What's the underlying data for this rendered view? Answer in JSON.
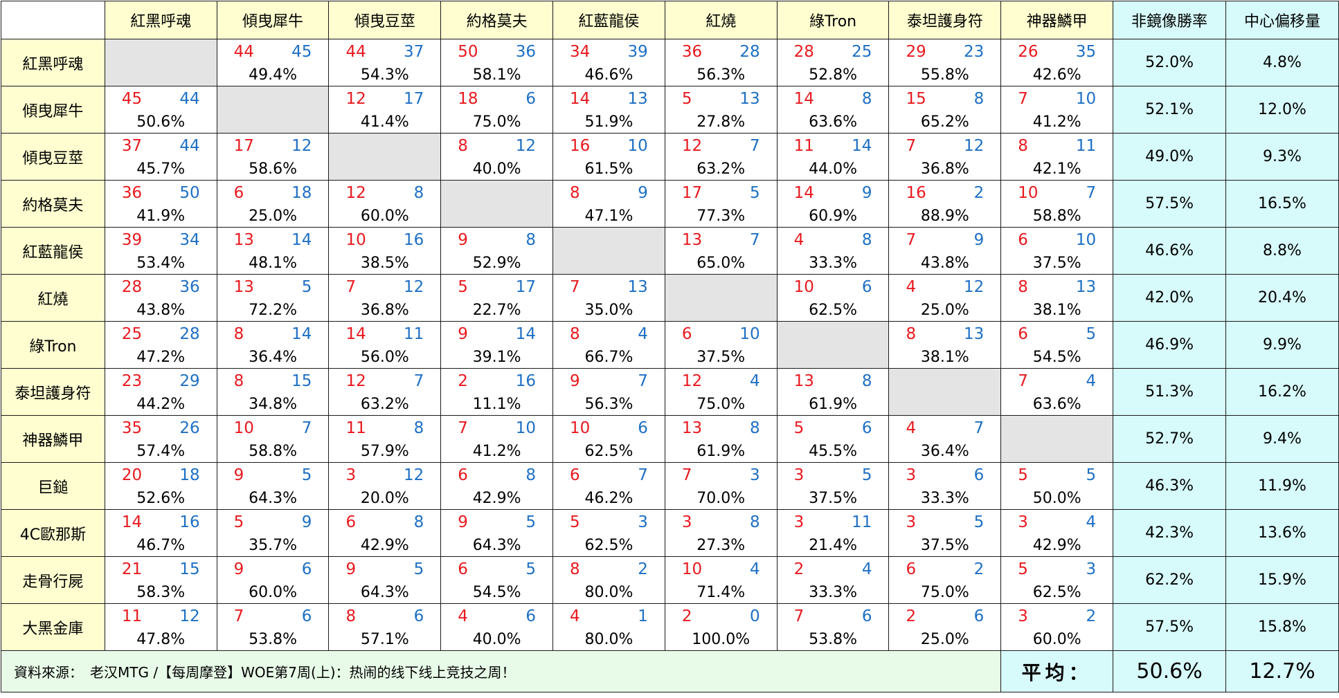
{
  "columns": [
    "紅黑呼魂",
    "傾曳犀牛",
    "傾曳豆莖",
    "約格莫夫",
    "紅藍龍侯",
    "紅燒",
    "綠Tron",
    "泰坦護身符",
    "神器鱗甲"
  ],
  "stat_headers": [
    "非鏡像勝率",
    "中心偏移量"
  ],
  "rows": [
    {
      "name": "紅黑呼魂",
      "cells": [
        null,
        [
          "44",
          "45",
          "49.4%"
        ],
        [
          "44",
          "37",
          "54.3%"
        ],
        [
          "50",
          "36",
          "58.1%"
        ],
        [
          "34",
          "39",
          "46.6%"
        ],
        [
          "36",
          "28",
          "56.3%"
        ],
        [
          "28",
          "25",
          "52.8%"
        ],
        [
          "29",
          "23",
          "55.8%"
        ],
        [
          "26",
          "35",
          "42.6%"
        ]
      ],
      "winrate": "52.0%",
      "offset": "4.8%"
    },
    {
      "name": "傾曳犀牛",
      "cells": [
        [
          "45",
          "44",
          "50.6%"
        ],
        null,
        [
          "12",
          "17",
          "41.4%"
        ],
        [
          "18",
          "6",
          "75.0%"
        ],
        [
          "14",
          "13",
          "51.9%"
        ],
        [
          "5",
          "13",
          "27.8%"
        ],
        [
          "14",
          "8",
          "63.6%"
        ],
        [
          "15",
          "8",
          "65.2%"
        ],
        [
          "7",
          "10",
          "41.2%"
        ]
      ],
      "winrate": "52.1%",
      "offset": "12.0%"
    },
    {
      "name": "傾曳豆莖",
      "cells": [
        [
          "37",
          "44",
          "45.7%"
        ],
        [
          "17",
          "12",
          "58.6%"
        ],
        null,
        [
          "8",
          "12",
          "40.0%"
        ],
        [
          "16",
          "10",
          "61.5%"
        ],
        [
          "12",
          "7",
          "63.2%"
        ],
        [
          "11",
          "14",
          "44.0%"
        ],
        [
          "7",
          "12",
          "36.8%"
        ],
        [
          "8",
          "11",
          "42.1%"
        ]
      ],
      "winrate": "49.0%",
      "offset": "9.3%"
    },
    {
      "name": "約格莫夫",
      "cells": [
        [
          "36",
          "50",
          "41.9%"
        ],
        [
          "6",
          "18",
          "25.0%"
        ],
        [
          "12",
          "8",
          "60.0%"
        ],
        null,
        [
          "8",
          "9",
          "47.1%"
        ],
        [
          "17",
          "5",
          "77.3%"
        ],
        [
          "14",
          "9",
          "60.9%"
        ],
        [
          "16",
          "2",
          "88.9%"
        ],
        [
          "10",
          "7",
          "58.8%"
        ]
      ],
      "winrate": "57.5%",
      "offset": "16.5%"
    },
    {
      "name": "紅藍龍侯",
      "cells": [
        [
          "39",
          "34",
          "53.4%"
        ],
        [
          "13",
          "14",
          "48.1%"
        ],
        [
          "10",
          "16",
          "38.5%"
        ],
        [
          "9",
          "8",
          "52.9%"
        ],
        null,
        [
          "13",
          "7",
          "65.0%"
        ],
        [
          "4",
          "8",
          "33.3%"
        ],
        [
          "7",
          "9",
          "43.8%"
        ],
        [
          "6",
          "10",
          "37.5%"
        ]
      ],
      "winrate": "46.6%",
      "offset": "8.8%"
    },
    {
      "name": "紅燒",
      "cells": [
        [
          "28",
          "36",
          "43.8%"
        ],
        [
          "13",
          "5",
          "72.2%"
        ],
        [
          "7",
          "12",
          "36.8%"
        ],
        [
          "5",
          "17",
          "22.7%"
        ],
        [
          "7",
          "13",
          "35.0%"
        ],
        null,
        [
          "10",
          "6",
          "62.5%"
        ],
        [
          "4",
          "12",
          "25.0%"
        ],
        [
          "8",
          "13",
          "38.1%"
        ]
      ],
      "winrate": "42.0%",
      "offset": "20.4%"
    },
    {
      "name": "綠Tron",
      "cells": [
        [
          "25",
          "28",
          "47.2%"
        ],
        [
          "8",
          "14",
          "36.4%"
        ],
        [
          "14",
          "11",
          "56.0%"
        ],
        [
          "9",
          "14",
          "39.1%"
        ],
        [
          "8",
          "4",
          "66.7%"
        ],
        [
          "6",
          "10",
          "37.5%"
        ],
        null,
        [
          "8",
          "13",
          "38.1%"
        ],
        [
          "6",
          "5",
          "54.5%"
        ]
      ],
      "winrate": "46.9%",
      "offset": "9.9%"
    },
    {
      "name": "泰坦護身符",
      "cells": [
        [
          "23",
          "29",
          "44.2%"
        ],
        [
          "8",
          "15",
          "34.8%"
        ],
        [
          "12",
          "7",
          "63.2%"
        ],
        [
          "2",
          "16",
          "11.1%"
        ],
        [
          "9",
          "7",
          "56.3%"
        ],
        [
          "12",
          "4",
          "75.0%"
        ],
        [
          "13",
          "8",
          "61.9%"
        ],
        null,
        [
          "7",
          "4",
          "63.6%"
        ]
      ],
      "winrate": "51.3%",
      "offset": "16.2%"
    },
    {
      "name": "神器鱗甲",
      "cells": [
        [
          "35",
          "26",
          "57.4%"
        ],
        [
          "10",
          "7",
          "58.8%"
        ],
        [
          "11",
          "8",
          "57.9%"
        ],
        [
          "7",
          "10",
          "41.2%"
        ],
        [
          "10",
          "6",
          "62.5%"
        ],
        [
          "13",
          "8",
          "61.9%"
        ],
        [
          "5",
          "6",
          "45.5%"
        ],
        [
          "4",
          "7",
          "36.4%"
        ],
        null
      ],
      "winrate": "52.7%",
      "offset": "9.4%"
    },
    {
      "name": "巨鎚",
      "cells": [
        [
          "20",
          "18",
          "52.6%"
        ],
        [
          "9",
          "5",
          "64.3%"
        ],
        [
          "3",
          "12",
          "20.0%"
        ],
        [
          "6",
          "8",
          "42.9%"
        ],
        [
          "6",
          "7",
          "46.2%"
        ],
        [
          "7",
          "3",
          "70.0%"
        ],
        [
          "3",
          "5",
          "37.5%"
        ],
        [
          "3",
          "6",
          "33.3%"
        ],
        [
          "5",
          "5",
          "50.0%"
        ]
      ],
      "winrate": "46.3%",
      "offset": "11.9%"
    },
    {
      "name": "4C歐那斯",
      "cells": [
        [
          "14",
          "16",
          "46.7%"
        ],
        [
          "5",
          "9",
          "35.7%"
        ],
        [
          "6",
          "8",
          "42.9%"
        ],
        [
          "9",
          "5",
          "64.3%"
        ],
        [
          "5",
          "3",
          "62.5%"
        ],
        [
          "3",
          "8",
          "27.3%"
        ],
        [
          "3",
          "11",
          "21.4%"
        ],
        [
          "3",
          "5",
          "37.5%"
        ],
        [
          "3",
          "4",
          "42.9%"
        ]
      ],
      "winrate": "42.3%",
      "offset": "13.6%"
    },
    {
      "name": "走骨行屍",
      "cells": [
        [
          "21",
          "15",
          "58.3%"
        ],
        [
          "9",
          "6",
          "60.0%"
        ],
        [
          "9",
          "5",
          "64.3%"
        ],
        [
          "6",
          "5",
          "54.5%"
        ],
        [
          "8",
          "2",
          "80.0%"
        ],
        [
          "10",
          "4",
          "71.4%"
        ],
        [
          "2",
          "4",
          "33.3%"
        ],
        [
          "6",
          "2",
          "75.0%"
        ],
        [
          "5",
          "3",
          "62.5%"
        ]
      ],
      "winrate": "62.2%",
      "offset": "15.9%"
    },
    {
      "name": "大黑金庫",
      "cells": [
        [
          "11",
          "12",
          "47.8%"
        ],
        [
          "7",
          "6",
          "53.8%"
        ],
        [
          "8",
          "6",
          "57.1%"
        ],
        [
          "4",
          "6",
          "40.0%"
        ],
        [
          "4",
          "1",
          "80.0%"
        ],
        [
          "2",
          "0",
          "100.0%"
        ],
        [
          "7",
          "6",
          "53.8%"
        ],
        [
          "2",
          "6",
          "25.0%"
        ],
        [
          "3",
          "2",
          "60.0%"
        ]
      ],
      "winrate": "57.5%",
      "offset": "15.8%"
    }
  ],
  "footer": {
    "source": "資料來源：　老汉MTG /【每周摩登】WOE第7周(上)：热闹的线下线上竞技之周！",
    "avg_label": "平均：",
    "avg_winrate": "50.6%",
    "avg_offset": "12.7%"
  },
  "colors": {
    "wins": "#e8191e",
    "losses": "#1d6fc4",
    "header_bg": "#fefed0",
    "stat_bg": "#d7fafa",
    "diag_bg": "#e4e4e4",
    "footer_bg": "#e8fbe8"
  }
}
